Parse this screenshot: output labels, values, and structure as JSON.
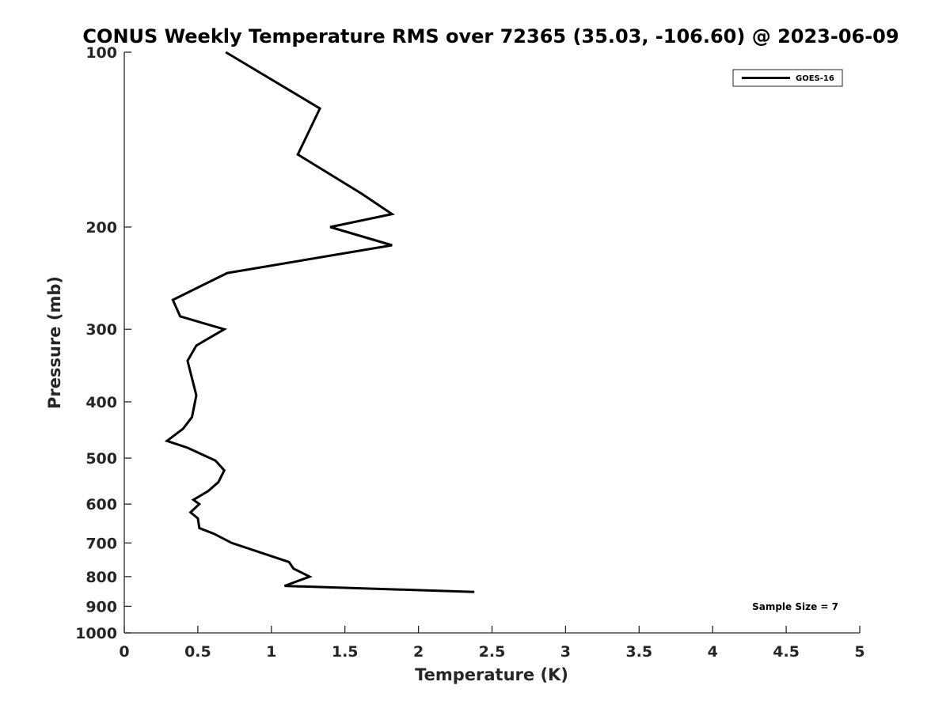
{
  "chart_data": {
    "type": "line",
    "title": "CONUS Weekly Temperature RMS over 72365 (35.03, -106.60) @ 2023-06-09",
    "xlabel": "Temperature (K)",
    "ylabel": "Pressure (mb)",
    "xlim": [
      0,
      5
    ],
    "ylim": [
      1000,
      100
    ],
    "y_scale": "log",
    "y_reversed": true,
    "grid": false,
    "legend_position": "top-right",
    "x_ticks": [
      0,
      0.5,
      1,
      1.5,
      2,
      2.5,
      3,
      3.5,
      4,
      4.5,
      5
    ],
    "x_tick_labels": [
      "0",
      "0.5",
      "1",
      "1.5",
      "2",
      "2.5",
      "3",
      "3.5",
      "4",
      "4.5",
      "5"
    ],
    "y_ticks": [
      100,
      200,
      300,
      400,
      500,
      600,
      700,
      800,
      900,
      1000
    ],
    "y_tick_labels": [
      "100",
      "200",
      "300",
      "400",
      "500",
      "600",
      "700",
      "800",
      "900",
      "1000"
    ],
    "annotation": "Sample Size = 7",
    "series": [
      {
        "name": "GOES-16",
        "color": "#000000",
        "points": [
          {
            "x": 0.69,
            "y": 100
          },
          {
            "x": 1.33,
            "y": 125
          },
          {
            "x": 1.18,
            "y": 150
          },
          {
            "x": 1.61,
            "y": 175
          },
          {
            "x": 1.82,
            "y": 190
          },
          {
            "x": 1.4,
            "y": 200
          },
          {
            "x": 1.82,
            "y": 215
          },
          {
            "x": 0.7,
            "y": 240
          },
          {
            "x": 0.33,
            "y": 267
          },
          {
            "x": 0.38,
            "y": 285
          },
          {
            "x": 0.68,
            "y": 300
          },
          {
            "x": 0.49,
            "y": 320
          },
          {
            "x": 0.43,
            "y": 340
          },
          {
            "x": 0.49,
            "y": 390
          },
          {
            "x": 0.46,
            "y": 425
          },
          {
            "x": 0.4,
            "y": 445
          },
          {
            "x": 0.29,
            "y": 467
          },
          {
            "x": 0.43,
            "y": 480
          },
          {
            "x": 0.62,
            "y": 505
          },
          {
            "x": 0.68,
            "y": 525
          },
          {
            "x": 0.64,
            "y": 550
          },
          {
            "x": 0.57,
            "y": 570
          },
          {
            "x": 0.47,
            "y": 590
          },
          {
            "x": 0.51,
            "y": 600
          },
          {
            "x": 0.45,
            "y": 620
          },
          {
            "x": 0.5,
            "y": 635
          },
          {
            "x": 0.51,
            "y": 660
          },
          {
            "x": 0.61,
            "y": 675
          },
          {
            "x": 0.73,
            "y": 700
          },
          {
            "x": 1.12,
            "y": 755
          },
          {
            "x": 1.15,
            "y": 775
          },
          {
            "x": 1.26,
            "y": 800
          },
          {
            "x": 1.09,
            "y": 830
          },
          {
            "x": 2.38,
            "y": 850
          }
        ]
      }
    ]
  }
}
